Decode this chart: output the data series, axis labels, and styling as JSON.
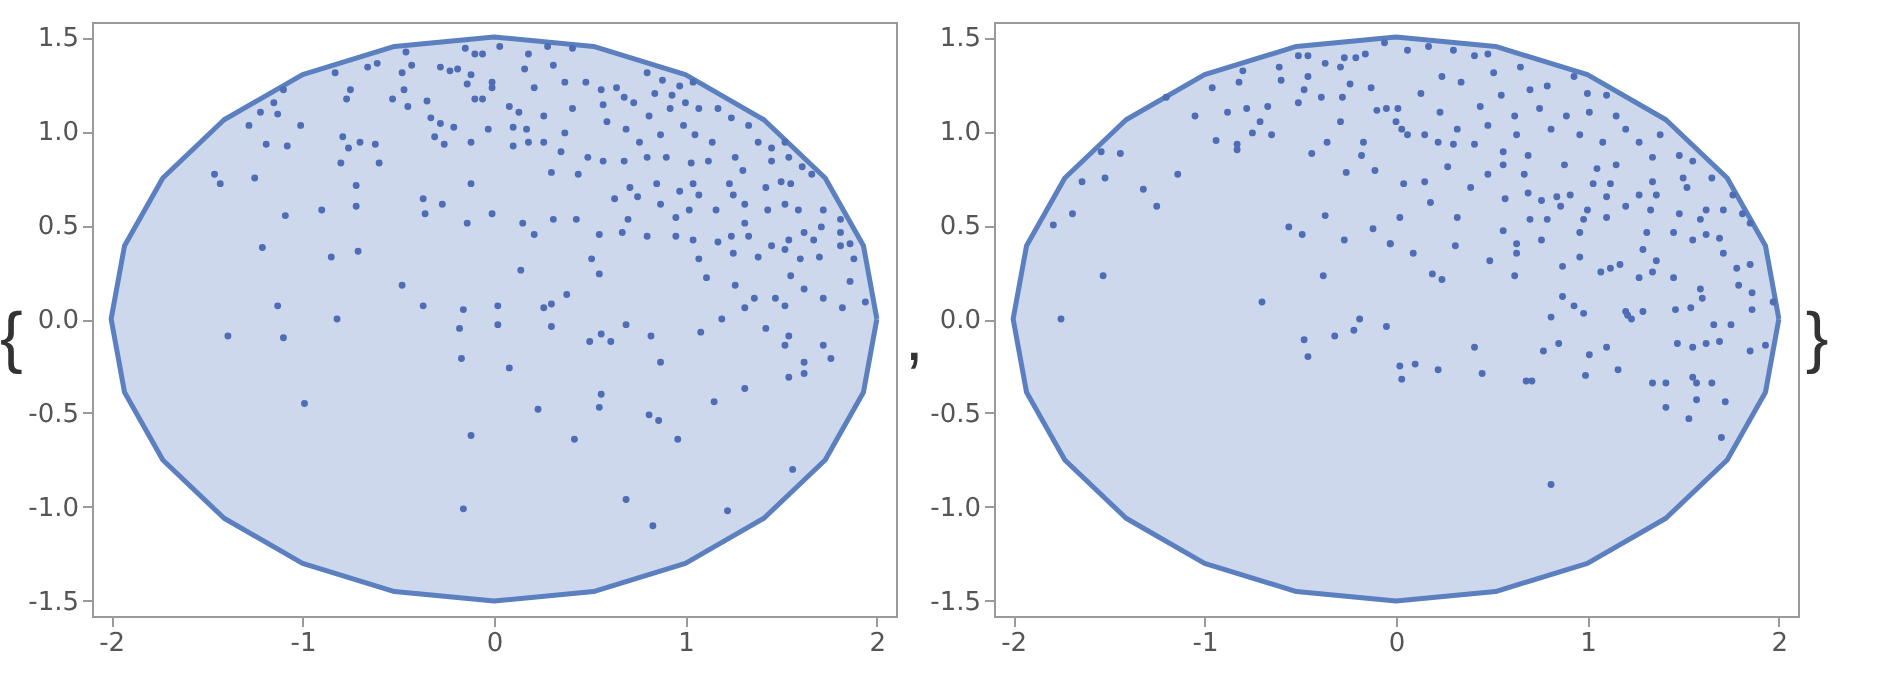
{
  "chart_data": [
    {
      "type": "scatter",
      "xlim": [
        -2.1,
        2.1
      ],
      "ylim": [
        -1.58,
        1.58
      ],
      "xticks": [
        -2,
        -1,
        0,
        1,
        2
      ],
      "yticks": [
        {
          "value": -1.5,
          "label": "-1.5"
        },
        {
          "value": -1,
          "label": "-1.0"
        },
        {
          "value": -0.5,
          "label": "-0.5"
        },
        {
          "value": 0,
          "label": "0.0"
        },
        {
          "value": 0.5,
          "label": "0.5"
        },
        {
          "value": 1,
          "label": "1.0"
        },
        {
          "value": 1.5,
          "label": "1.5"
        }
      ],
      "grid": false,
      "annotations": [
        "{",
        ","
      ],
      "series": [
        {
          "type": "area",
          "color": "#5b7fbf",
          "x": [
            2,
            1.93,
            1.73,
            1.41,
            1,
            0.52,
            0,
            -0.52,
            -1,
            -1.41,
            -1.73,
            -1.93,
            -2,
            -1.93,
            -1.73,
            -1.41,
            -1,
            -0.52,
            0,
            0.52,
            1,
            1.41,
            1.73,
            1.93,
            2
          ],
          "values": [
            0,
            0.39,
            0.75,
            1.06,
            1.3,
            1.45,
            1.5,
            1.45,
            1.3,
            1.06,
            0.75,
            0.39,
            0,
            -0.39,
            -0.75,
            -1.06,
            -1.3,
            -1.45,
            -1.5,
            -1.45,
            -1.3,
            -1.06,
            -0.75,
            -0.39,
            0
          ]
        },
        {
          "marker": "circle",
          "color": "#4f6db5",
          "x": [
            -1.46,
            -1.43,
            -1.25,
            -1.28,
            -1.22,
            -1.19,
            -1.13,
            -1.15,
            -1.1,
            -1.08,
            -1.09,
            -1.21,
            -1.13,
            -1.39,
            -1.1,
            -0.99,
            -1.01,
            -0.83,
            -0.75,
            -0.77,
            -0.79,
            -0.76,
            -0.7,
            -0.8,
            -0.72,
            -0.72,
            -0.9,
            -0.71,
            -0.85,
            -0.62,
            -0.6,
            -0.66,
            -0.61,
            -0.53,
            -0.47,
            -0.45,
            -0.48,
            -0.46,
            -0.43,
            -0.35,
            -0.33,
            -0.28,
            -0.31,
            -0.26,
            -0.37,
            -0.36,
            -0.27,
            -0.48,
            -0.37,
            -0.82,
            -0.16,
            -0.18,
            -0.17,
            -0.12,
            -0.16,
            -0.14,
            -0.12,
            -0.12,
            -0.21,
            -0.14,
            -0.1,
            -0.06,
            -0.28,
            -0.23,
            -0.19,
            -0.15,
            -0.1,
            -0.12,
            -0.01,
            -0.06,
            0.03,
            0.18,
            0.28,
            0.41,
            0.16,
            0.31,
            -0.01,
            0.21,
            0.37,
            0.48,
            0.56,
            0.64,
            0.8,
            0.88,
            0.97,
            1.04,
            0.68,
            0.84,
            0.93,
            1.0,
            0.08,
            0.13,
            0.26,
            0.41,
            0.57,
            0.73,
            0.81,
            0.92,
            1.07,
            1.17,
            1.24,
            -0.03,
            0.1,
            0.17,
            0.37,
            0.59,
            0.69,
            0.76,
            0.87,
            0.99,
            1.05,
            1.14,
            1.33,
            1.38,
            1.45,
            1.52,
            0.18,
            0.1,
            0.26,
            0.35,
            0.49,
            0.57,
            0.68,
            0.8,
            0.9,
            1.03,
            1.12,
            1.26,
            1.3,
            1.45,
            1.54,
            1.61,
            0.3,
            0.44,
            0.71,
            0.85,
            0.97,
            1.04,
            1.07,
            1.23,
            1.25,
            1.42,
            1.5,
            1.55,
            1.66,
            0.63,
            0.75,
            0.87,
            0.95,
            1.02,
            1.16,
            1.31,
            1.43,
            1.52,
            1.59,
            1.72,
            1.81,
            -0.01,
            0.15,
            0.31,
            0.43,
            0.7,
            0.21,
            0.55,
            0.67,
            0.8,
            0.95,
            1.04,
            1.17,
            1.24,
            1.31,
            1.33,
            1.45,
            1.54,
            1.62,
            1.67,
            1.71,
            1.81,
            1.86,
            1.25,
            1.38,
            1.52,
            1.6,
            1.7,
            1.81,
            1.88,
            0.14,
            0.51,
            0.55,
            1.07,
            1.11,
            1.26,
            1.55,
            1.62,
            1.86,
            0.38,
            0.02,
            0.26,
            0.3,
            1.31,
            1.36,
            1.47,
            1.52,
            1.72,
            1.82,
            1.94,
            0.02,
            0.3,
            0.69,
            1.19,
            0.56,
            0.5,
            0.61,
            0.82,
            1.08,
            1.42,
            1.54,
            1.52,
            1.72,
            1.76,
            0.87,
            0.08,
            1.62,
            1.54,
            1.62,
            1.31,
            0.23,
            0.55,
            0.56,
            1.15,
            0.81,
            0.86,
            0.42,
            0.96,
            1.56,
            0.69,
            1.22,
            0.83
          ],
          "values": [
            0.77,
            0.72,
            0.75,
            1.03,
            1.1,
            0.93,
            1.09,
            1.15,
            1.22,
            0.92,
            0.55,
            0.38,
            0.07,
            -0.09,
            -0.1,
            -0.45,
            1.03,
            1.31,
            1.22,
            1.17,
            0.97,
            0.91,
            0.94,
            0.83,
            0.71,
            0.6,
            0.58,
            0.36,
            0.33,
            0.93,
            0.83,
            1.34,
            1.36,
            1.17,
            1.22,
            1.13,
            1.31,
            1.42,
            1.35,
            1.16,
            1.07,
            1.04,
            0.97,
            0.93,
            0.64,
            0.56,
            0.61,
            0.18,
            0.07,
            0.0,
            0.05,
            -0.05,
            -0.21,
            -0.62,
            -1.01,
            0.51,
            0.72,
            0.94,
            1.02,
            1.25,
            1.17,
            1.17,
            1.34,
            1.32,
            1.33,
            1.44,
            1.41,
            1.3,
            1.23,
            1.41,
            1.45,
            1.41,
            1.45,
            1.44,
            1.33,
            1.35,
            1.26,
            1.23,
            1.26,
            1.26,
            1.22,
            1.23,
            1.31,
            1.27,
            1.24,
            1.26,
            1.18,
            1.2,
            1.19,
            1.15,
            1.13,
            1.1,
            1.08,
            1.12,
            1.14,
            1.15,
            1.08,
            1.12,
            1.12,
            1.12,
            1.07,
            1.01,
            1.02,
            1.01,
            0.99,
            1.05,
            1.01,
            0.94,
            0.98,
            1.03,
            0.98,
            0.94,
            1.03,
            0.94,
            0.91,
            0.94,
            0.94,
            0.92,
            0.94,
            0.89,
            0.86,
            0.84,
            0.84,
            0.86,
            0.86,
            0.83,
            0.84,
            0.86,
            0.79,
            0.84,
            0.86,
            0.81,
            0.78,
            0.77,
            0.7,
            0.72,
            0.68,
            0.72,
            0.66,
            0.72,
            0.66,
            0.7,
            0.73,
            0.72,
            0.77,
            0.64,
            0.65,
            0.61,
            0.54,
            0.58,
            0.58,
            0.61,
            0.58,
            0.61,
            0.58,
            0.58,
            0.53,
            0.56,
            0.51,
            0.53,
            0.53,
            0.53,
            0.45,
            0.45,
            0.46,
            0.44,
            0.44,
            0.42,
            0.41,
            0.44,
            0.51,
            0.44,
            0.39,
            0.42,
            0.46,
            0.42,
            0.49,
            0.46,
            0.4,
            0.35,
            0.33,
            0.37,
            0.32,
            0.33,
            0.39,
            0.32,
            0.26,
            0.32,
            0.24,
            0.32,
            0.22,
            0.18,
            0.23,
            0.16,
            0.2,
            0.13,
            0.07,
            0.06,
            0.08,
            0.06,
            0.11,
            0.11,
            0.07,
            0.11,
            0.06,
            0.09,
            -0.03,
            -0.04,
            -0.03,
            0.0,
            -0.08,
            -0.12,
            -0.12,
            -0.09,
            -0.07,
            -0.05,
            -0.09,
            -0.14,
            -0.14,
            -0.21,
            -0.23,
            -0.26,
            -0.23,
            -0.31,
            -0.29,
            -0.37,
            -0.48,
            -0.47,
            -0.4,
            -0.44,
            -0.51,
            -0.54,
            -0.64,
            -0.64,
            -0.8,
            -0.96,
            -1.02,
            -1.1
          ]
        }
      ]
    },
    {
      "type": "scatter",
      "xlim": [
        -2.1,
        2.1
      ],
      "ylim": [
        -1.58,
        1.58
      ],
      "xticks": [
        -2,
        -1,
        0,
        1,
        2
      ],
      "yticks": [
        {
          "value": -1.5,
          "label": "-1.5"
        },
        {
          "value": -1,
          "label": "-1.0"
        },
        {
          "value": -0.5,
          "label": "-0.5"
        },
        {
          "value": 0,
          "label": "0.0"
        },
        {
          "value": 0.5,
          "label": "0.5"
        },
        {
          "value": 1,
          "label": "1.0"
        },
        {
          "value": 1.5,
          "label": "1.5"
        }
      ],
      "grid": false,
      "annotations": [
        "}"
      ],
      "series": [
        {
          "type": "area",
          "color": "#5b7fbf",
          "x": [
            2,
            1.93,
            1.73,
            1.41,
            1,
            0.52,
            0,
            -0.52,
            -1,
            -1.41,
            -1.73,
            -1.93,
            -2,
            -1.93,
            -1.73,
            -1.41,
            -1,
            -0.52,
            0,
            0.52,
            1,
            1.41,
            1.73,
            1.93,
            2
          ],
          "values": [
            0,
            0.39,
            0.75,
            1.06,
            1.3,
            1.45,
            1.5,
            1.45,
            1.3,
            1.06,
            0.75,
            0.39,
            0,
            -0.39,
            -0.75,
            -1.06,
            -1.3,
            -1.45,
            -1.5,
            -1.45,
            -1.3,
            -1.06,
            -0.75,
            -0.39,
            0
          ]
        },
        {
          "marker": "circle",
          "color": "#4f6db5",
          "x": [
            -1.79,
            -1.75,
            -1.69,
            -1.64,
            -1.54,
            -1.52,
            -1.53,
            -1.44,
            -1.32,
            -1.25,
            -1.2,
            -1.14,
            -1.05,
            -0.96,
            -0.94,
            -0.88,
            -0.83,
            -0.83,
            -0.82,
            -0.8,
            -0.78,
            -0.75,
            -0.71,
            -0.67,
            -0.65,
            -0.7,
            -0.61,
            -0.6,
            -0.56,
            -0.51,
            -0.49,
            -0.48,
            -0.46,
            -0.51,
            -0.46,
            -0.44,
            -0.38,
            -0.37,
            -0.36,
            -0.48,
            -0.46,
            -0.39,
            -0.37,
            -0.32,
            -0.29,
            -0.29,
            -0.27,
            -0.28,
            -0.27,
            -0.26,
            -0.24,
            -0.22,
            -0.19,
            -0.18,
            -0.17,
            -0.21,
            -0.16,
            -0.12,
            -0.11,
            -0.1,
            -0.13,
            -0.05,
            -0.05,
            -0.03,
            0.0,
            -0.06,
            0.06,
            0.17,
            0.3,
            0.41,
            0.48,
            0.24,
            0.34,
            0.51,
            0.65,
            0.7,
            0.79,
            0.93,
            1.0,
            1.1,
            0.01,
            0.13,
            0.23,
            0.44,
            0.55,
            0.62,
            0.75,
            0.89,
            1.01,
            1.15,
            1.2,
            0.03,
            0.15,
            0.32,
            0.48,
            0.63,
            0.81,
            0.96,
            1.08,
            1.27,
            1.38,
            0.06,
            0.22,
            0.3,
            0.41,
            0.56,
            0.69,
            0.88,
            1.05,
            1.15,
            1.34,
            1.48,
            1.55,
            0.27,
            0.48,
            0.56,
            0.67,
            1.03,
            1.12,
            1.34,
            1.5,
            1.65,
            0.04,
            0.15,
            0.39,
            0.69,
            0.84,
            0.91,
            1.1,
            1.27,
            1.36,
            1.52,
            1.76,
            0.18,
            0.57,
            0.76,
            0.86,
            1.0,
            1.1,
            1.2,
            1.33,
            1.48,
            1.62,
            1.71,
            1.81,
            0.02,
            0.32,
            0.7,
            0.79,
            0.98,
            1.59,
            1.85,
            0.56,
            0.96,
            1.31,
            1.45,
            1.62,
            1.69,
            -0.03,
            0.31,
            0.63,
            0.76,
            1.29,
            1.55,
            1.71,
            0.09,
            0.49,
            0.63,
            0.96,
            1.17,
            1.36,
            1.85,
            0.19,
            0.24,
            0.62,
            0.87,
            1.07,
            1.12,
            1.27,
            1.34,
            1.45,
            1.59,
            1.78,
            1.79,
            1.86,
            0.87,
            0.93,
            0.98,
            0.81,
            1.2,
            1.21,
            1.23,
            1.29,
            1.46,
            1.54,
            1.6,
            1.66,
            1.75,
            1.86,
            1.97,
            0.41,
            0.77,
            0.85,
            1.01,
            1.1,
            1.47,
            1.55,
            1.62,
            1.69,
            1.85,
            1.93,
            0.02,
            0.1,
            0.03,
            0.22,
            0.45,
            0.68,
            0.71,
            0.99,
            1.16,
            1.34,
            1.41,
            1.55,
            1.57,
            1.65,
            1.41,
            1.53,
            1.57,
            1.72,
            1.7,
            0.81
          ],
          "values": [
            0.5,
            0.0,
            0.56,
            0.73,
            0.89,
            0.75,
            0.23,
            0.88,
            0.69,
            0.6,
            1.18,
            0.77,
            1.08,
            1.23,
            0.95,
            1.1,
            0.93,
            0.9,
            1.26,
            1.32,
            1.12,
            0.99,
            1.05,
            1.13,
            0.98,
            0.09,
            1.34,
            1.27,
            0.49,
            1.15,
            0.45,
            1.22,
            1.29,
            1.4,
            1.4,
            0.88,
            0.23,
            0.55,
            0.94,
            -0.11,
            -0.2,
            1.18,
            1.36,
            -0.09,
            1.34,
            1.05,
            1.39,
            1.18,
            0.42,
            0.78,
            1.25,
            -0.06,
            0.0,
            0.87,
            0.94,
            1.39,
            1.41,
            0.48,
            0.79,
            1.11,
            1.23,
            -0.04,
            1.12,
            0.4,
            1.05,
            1.47,
            1.43,
            1.45,
            1.43,
            1.4,
            1.41,
            1.29,
            1.26,
            1.31,
            1.34,
            1.22,
            1.24,
            1.29,
            1.2,
            1.19,
            1.12,
            1.2,
            1.1,
            1.13,
            1.19,
            1.08,
            1.12,
            1.08,
            1.1,
            1.08,
            1.01,
            1.01,
            0.98,
            1.01,
            1.03,
            0.98,
            1.01,
            0.98,
            0.94,
            0.94,
            0.98,
            0.98,
            0.94,
            0.93,
            0.93,
            0.89,
            0.87,
            0.82,
            0.8,
            0.82,
            0.86,
            0.87,
            0.84,
            0.81,
            0.77,
            0.82,
            0.77,
            0.72,
            0.72,
            0.73,
            0.75,
            0.75,
            0.72,
            0.73,
            0.7,
            0.67,
            0.65,
            0.66,
            0.65,
            0.66,
            0.66,
            0.7,
            0.66,
            0.62,
            0.64,
            0.63,
            0.6,
            0.58,
            0.54,
            0.6,
            0.58,
            0.56,
            0.58,
            0.58,
            0.56,
            0.54,
            0.54,
            0.53,
            0.53,
            0.53,
            0.53,
            0.51,
            0.47,
            0.46,
            0.46,
            0.46,
            0.45,
            0.43,
            0.4,
            0.39,
            0.4,
            0.42,
            0.37,
            0.42,
            0.35,
            0.35,
            0.31,
            0.35,
            0.33,
            0.29,
            0.31,
            0.29,
            0.24,
            0.21,
            0.23,
            0.28,
            0.25,
            0.27,
            0.22,
            0.25,
            0.22,
            0.16,
            0.27,
            0.18,
            0.14,
            0.12,
            0.07,
            0.03,
            0.01,
            0.04,
            0.02,
            0.0,
            0.04,
            0.05,
            0.06,
            0.11,
            -0.03,
            -0.03,
            0.05,
            0.09,
            -0.15,
            -0.17,
            -0.13,
            -0.19,
            -0.15,
            -0.13,
            -0.15,
            -0.13,
            -0.12,
            -0.17,
            -0.14,
            -0.25,
            -0.24,
            -0.32,
            -0.27,
            -0.29,
            -0.33,
            -0.33,
            -0.3,
            -0.27,
            -0.34,
            -0.34,
            -0.31,
            -0.34,
            -0.34,
            -0.47,
            -0.53,
            -0.43,
            -0.44,
            -0.63,
            -0.88
          ]
        }
      ]
    }
  ]
}
